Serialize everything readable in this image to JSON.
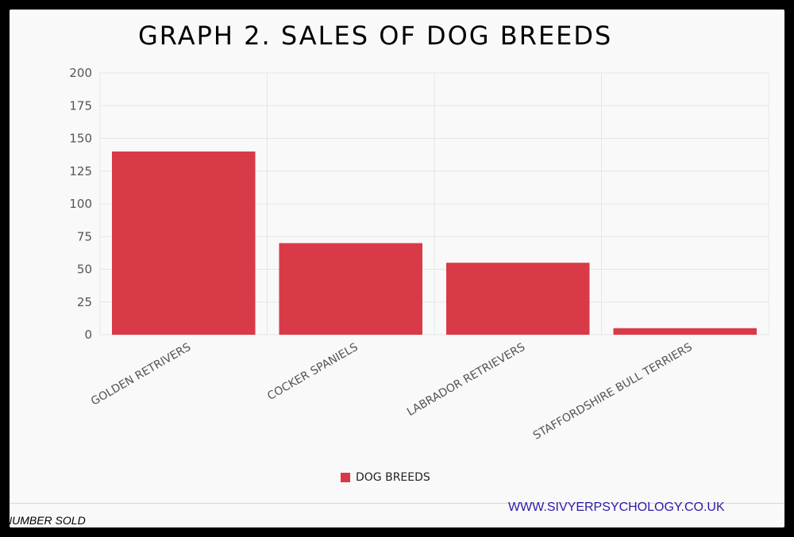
{
  "chart_data": {
    "type": "bar",
    "title": "GRAPH 2. SALES OF DOG BREEDS",
    "categories": [
      "GOLDEN RETRIVERS",
      "COCKER SPANIELS",
      "LABRADOR RETRIEVERS",
      "STAFFORDSHIRE BULL TERRIERS"
    ],
    "series": [
      {
        "name": "DOG BREEDS",
        "values": [
          140,
          70,
          55,
          5
        ],
        "color": "#d93a48"
      }
    ],
    "xlabel": "",
    "ylabel": "NUMBER SOLD",
    "ylim": [
      0,
      200
    ],
    "yticks": [
      "0",
      "25",
      "50",
      "75",
      "100",
      "125",
      "150",
      "175",
      "200"
    ],
    "grid": true,
    "legend_placement": "bottom-center"
  },
  "footer": {
    "website": "WWW.SIVYERPSYCHOLOGY.CO.UK"
  },
  "colors": {
    "background": "#f9f9f9",
    "frame": "#000000",
    "gridline": "#e6e6e6",
    "link": "#2b1ba8"
  }
}
